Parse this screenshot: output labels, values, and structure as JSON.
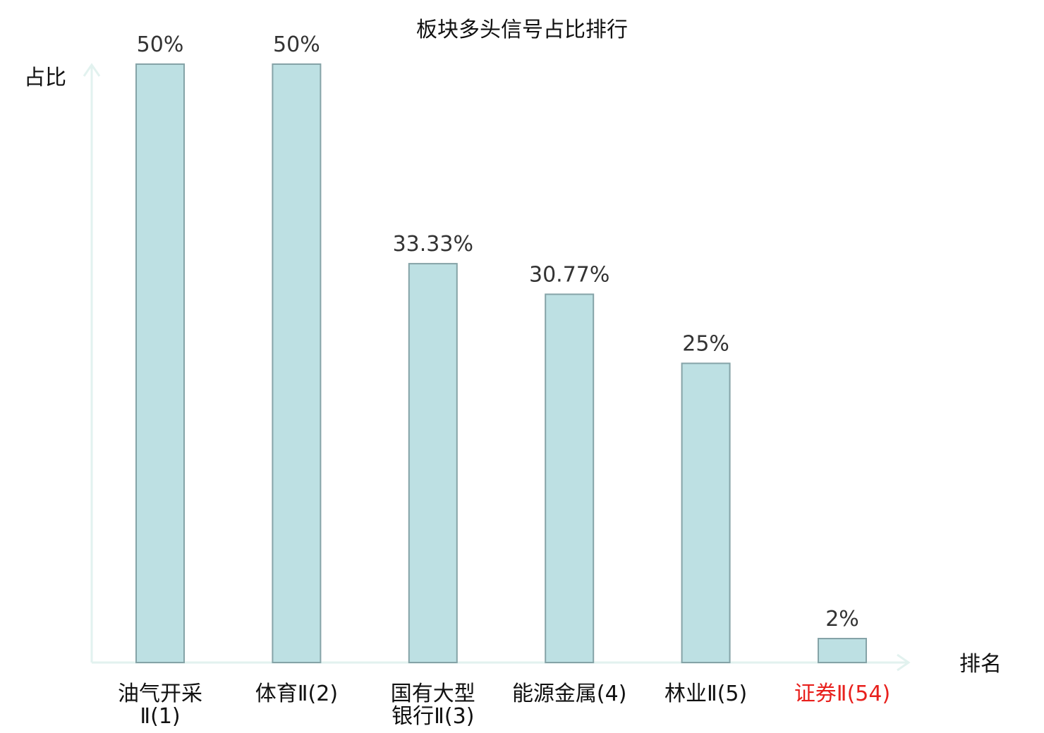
{
  "chart_data": {
    "type": "bar",
    "title": "板块多头信号占比排行",
    "ylabel": "占比",
    "xlabel": "排名",
    "ylim": [
      0,
      50
    ],
    "grid": false,
    "legend": "none",
    "categories": [
      {
        "name_lines": [
          "油气开采",
          "Ⅱ(1)"
        ],
        "highlight": false
      },
      {
        "name_lines": [
          "体育Ⅱ(2)"
        ],
        "highlight": false
      },
      {
        "name_lines": [
          "国有大型",
          "银行Ⅱ(3)"
        ],
        "highlight": false
      },
      {
        "name_lines": [
          "能源金属(4)"
        ],
        "highlight": false
      },
      {
        "name_lines": [
          "林业Ⅱ(5)"
        ],
        "highlight": false
      },
      {
        "name_lines": [
          "证券Ⅱ(54)"
        ],
        "highlight": true
      }
    ],
    "values": [
      50,
      50,
      33.33,
      30.77,
      25,
      2
    ],
    "value_labels": [
      "50%",
      "50%",
      "33.33%",
      "30.77%",
      "25%",
      "2%"
    ],
    "colors": {
      "bar_fill": "#bde0e3",
      "bar_stroke": "#85a3a7",
      "axis": "#e2f2ef",
      "highlight_label": "#e8201d",
      "text": "#111111"
    }
  }
}
